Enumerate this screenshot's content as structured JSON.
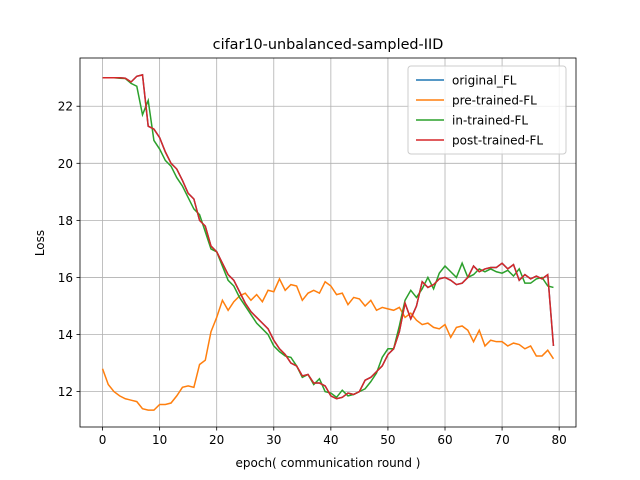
{
  "chart_data": {
    "type": "line",
    "title": "cifar10-unbalanced-sampled-IID",
    "x_label": "epoch( communication round )",
    "y_label": "Loss",
    "x": [
      0,
      1,
      2,
      3,
      4,
      5,
      6,
      7,
      8,
      9,
      10,
      11,
      12,
      13,
      14,
      15,
      16,
      17,
      18,
      19,
      20,
      21,
      22,
      23,
      24,
      25,
      26,
      27,
      28,
      29,
      30,
      31,
      32,
      33,
      34,
      35,
      36,
      37,
      38,
      39,
      40,
      41,
      42,
      43,
      44,
      45,
      46,
      47,
      48,
      49,
      50,
      51,
      52,
      53,
      54,
      55,
      56,
      57,
      58,
      59,
      60,
      61,
      62,
      63,
      64,
      65,
      66,
      67,
      68,
      69,
      70,
      71,
      72,
      73,
      74,
      75,
      76,
      77,
      78,
      79
    ],
    "series": [
      {
        "name": "original_FL",
        "color": "#1f77b4",
        "values": [
          23.0,
          23.0,
          23.0,
          23.0,
          22.98,
          22.85,
          23.05,
          23.1,
          21.3,
          21.2,
          20.9,
          20.4,
          20.0,
          19.8,
          19.4,
          18.95,
          18.75,
          18.0,
          17.8,
          17.1,
          16.9,
          16.5,
          16.1,
          15.9,
          15.5,
          15.1,
          14.8,
          14.6,
          14.4,
          14.2,
          13.8,
          13.5,
          13.3,
          13.0,
          12.9,
          12.55,
          12.6,
          12.3,
          12.3,
          12.2,
          11.85,
          11.75,
          11.8,
          11.95,
          11.9,
          12.0,
          12.4,
          12.5,
          12.7,
          12.9,
          13.3,
          13.5,
          14.1,
          15.1,
          14.55,
          15.0,
          15.85,
          15.65,
          15.75,
          15.95,
          16.0,
          15.9,
          15.75,
          15.8,
          16.0,
          16.4,
          16.2,
          16.3,
          16.35,
          16.35,
          16.5,
          16.3,
          16.45,
          15.9,
          16.1,
          15.95,
          16.05,
          15.95,
          16.1,
          13.6
        ]
      },
      {
        "name": "pre-trained-FL",
        "color": "#ff7f0e",
        "values": [
          12.8,
          12.25,
          12.0,
          11.85,
          11.75,
          11.7,
          11.65,
          11.4,
          11.35,
          11.35,
          11.55,
          11.55,
          11.6,
          11.85,
          12.15,
          12.2,
          12.15,
          12.95,
          13.1,
          14.1,
          14.6,
          15.2,
          14.85,
          15.15,
          15.35,
          15.45,
          15.2,
          15.4,
          15.15,
          15.55,
          15.5,
          15.95,
          15.55,
          15.75,
          15.7,
          15.2,
          15.45,
          15.55,
          15.45,
          15.85,
          15.7,
          15.4,
          15.45,
          15.05,
          15.3,
          15.25,
          15.0,
          15.2,
          14.85,
          14.95,
          14.9,
          14.85,
          14.95,
          14.6,
          14.75,
          14.5,
          14.35,
          14.4,
          14.25,
          14.2,
          14.35,
          13.9,
          14.25,
          14.3,
          14.15,
          13.75,
          14.15,
          13.6,
          13.8,
          13.75,
          13.75,
          13.6,
          13.7,
          13.65,
          13.5,
          13.6,
          13.25,
          13.25,
          13.45,
          13.15
        ]
      },
      {
        "name": "in-trained-FL",
        "color": "#2ca02c",
        "values": [
          23.0,
          23.0,
          23.0,
          22.98,
          22.97,
          22.8,
          22.7,
          21.7,
          22.2,
          20.8,
          20.5,
          20.1,
          19.9,
          19.5,
          19.2,
          18.8,
          18.4,
          18.2,
          17.6,
          17.0,
          16.9,
          16.4,
          15.9,
          15.7,
          15.3,
          15.0,
          14.7,
          14.4,
          14.2,
          14.0,
          13.6,
          13.4,
          13.25,
          13.2,
          12.9,
          12.5,
          12.6,
          12.25,
          12.45,
          12.0,
          11.95,
          11.8,
          12.05,
          11.85,
          11.9,
          12.0,
          12.1,
          12.35,
          12.65,
          13.2,
          13.5,
          13.5,
          14.3,
          15.2,
          15.55,
          15.3,
          15.6,
          16.0,
          15.6,
          16.15,
          16.4,
          16.2,
          16.0,
          16.5,
          16.0,
          16.1,
          16.3,
          16.2,
          16.3,
          16.2,
          16.15,
          16.25,
          16.05,
          16.3,
          15.8,
          15.8,
          15.95,
          16.0,
          15.7,
          15.65
        ]
      },
      {
        "name": "post-trained-FL",
        "color": "#d62728",
        "values": [
          23.0,
          23.0,
          23.0,
          23.0,
          22.98,
          22.85,
          23.05,
          23.1,
          21.3,
          21.2,
          20.9,
          20.4,
          20.0,
          19.8,
          19.4,
          18.95,
          18.75,
          18.0,
          17.8,
          17.1,
          16.9,
          16.5,
          16.1,
          15.9,
          15.5,
          15.1,
          14.8,
          14.6,
          14.4,
          14.2,
          13.8,
          13.5,
          13.3,
          13.0,
          12.9,
          12.55,
          12.6,
          12.3,
          12.3,
          12.2,
          11.85,
          11.75,
          11.8,
          11.95,
          11.9,
          12.0,
          12.4,
          12.5,
          12.7,
          12.9,
          13.3,
          13.5,
          14.1,
          15.1,
          14.55,
          15.0,
          15.85,
          15.65,
          15.75,
          15.95,
          16.0,
          15.9,
          15.75,
          15.8,
          16.0,
          16.4,
          16.2,
          16.3,
          16.35,
          16.35,
          16.5,
          16.3,
          16.45,
          15.9,
          16.1,
          15.95,
          16.05,
          15.95,
          16.1,
          13.6
        ]
      }
    ],
    "xlim": [
      -3.95,
      82.95
    ],
    "ylim": [
      10.76,
      23.69
    ],
    "xticks": [
      0,
      10,
      20,
      30,
      40,
      50,
      60,
      70,
      80
    ],
    "yticks": [
      12,
      14,
      16,
      18,
      20,
      22
    ],
    "grid": true,
    "legend": "upper right"
  }
}
